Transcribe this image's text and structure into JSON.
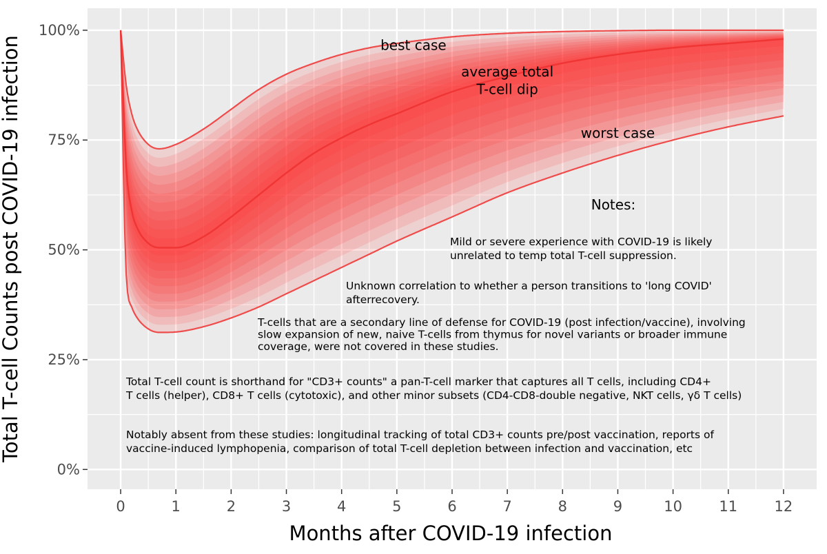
{
  "chart_data": {
    "type": "area",
    "title": "",
    "xlabel": "Months after COVID-19 infection",
    "ylabel": "Total T-cell Counts post COVID-19 infection",
    "xlim": [
      -0.6,
      12.6
    ],
    "ylim": [
      -4.5,
      105
    ],
    "x_ticks": [
      0,
      1,
      2,
      3,
      4,
      5,
      6,
      7,
      8,
      9,
      10,
      11,
      12
    ],
    "x_tick_labels": [
      "0",
      "1",
      "2",
      "3",
      "4",
      "5",
      "6",
      "7",
      "8",
      "9",
      "10",
      "11",
      "12"
    ],
    "y_ticks": [
      0,
      25,
      50,
      75,
      100
    ],
    "y_tick_labels": [
      "0%",
      "25%",
      "50%",
      "75%",
      "100%"
    ],
    "grid": true,
    "background": "#ebebeb",
    "colors": {
      "band": "#ff2a2a",
      "line": "#ee4b4b",
      "mean": "#ee3030"
    },
    "series": [
      {
        "name": "best case",
        "x": [
          0,
          0.1,
          0.2,
          0.3,
          0.5,
          0.7,
          1,
          1.5,
          2,
          2.5,
          3,
          3.5,
          4,
          4.5,
          5,
          6,
          7,
          8,
          9,
          10,
          11,
          12
        ],
        "values": [
          100,
          87.5,
          81,
          77.5,
          74,
          73,
          74,
          77.5,
          82,
          86.5,
          90,
          92.5,
          94.5,
          96,
          97,
          98.5,
          99.3,
          99.7,
          99.9,
          100,
          100,
          100
        ]
      },
      {
        "name": "average total T-cell dip",
        "x": [
          0,
          0.1,
          0.2,
          0.3,
          0.5,
          0.7,
          1,
          1.5,
          2,
          2.5,
          3,
          3.5,
          4,
          4.5,
          5,
          6,
          7,
          8,
          9,
          10,
          11,
          12
        ],
        "values": [
          100,
          69,
          59,
          55,
          51.5,
          50.5,
          50.5,
          53,
          57.5,
          62.5,
          67.5,
          72,
          75.5,
          78.5,
          81,
          86,
          89.5,
          92.5,
          94.5,
          96,
          97,
          98
        ]
      },
      {
        "name": "worst case",
        "x": [
          0,
          0.1,
          0.2,
          0.3,
          0.5,
          0.7,
          1,
          1.5,
          2,
          2.5,
          3,
          3.5,
          4,
          4.5,
          5,
          6,
          7,
          8,
          9,
          10,
          11,
          12
        ],
        "values": [
          100,
          44.5,
          37,
          34.5,
          32,
          31.2,
          31.3,
          32.5,
          34.5,
          37,
          40,
          43,
          46,
          49,
          52,
          57.5,
          63,
          67.5,
          71.5,
          75,
          78,
          80.5
        ]
      }
    ],
    "annotations": [
      {
        "text": "best case",
        "x": 5.3,
        "y": 95.5
      },
      {
        "text": "average total",
        "x": 7.0,
        "y": 89.5
      },
      {
        "text": "T-cell dip",
        "x": 7.0,
        "y": 85.5
      },
      {
        "text": "worst case",
        "x": 9.0,
        "y": 75.5
      }
    ]
  },
  "notes": {
    "title": "Notes:",
    "paragraphs": [
      [
        "Mild or severe experience with COVID-19 is likely",
        "unrelated to temp total T-cell suppression."
      ],
      [
        "Unknown correlation to whether a person transitions to 'long COVID'",
        "afterrecovery."
      ],
      [
        "T-cells that are a secondary line of defense for COVID-19 (post infection/vaccine), involving",
        "slow expansion of new, naive T-cells from thymus for novel variants or broader immune",
        "coverage, were not covered in these studies."
      ],
      [
        "Total T-cell count is shorthand for \"CD3+ counts\" a pan-T-cell marker that captures all T cells, including CD4+",
        "T cells (helper), CD8+ T cells (cytotoxic), and other minor subsets (CD4-CD8-double negative, NKT cells, γδ T cells)"
      ],
      [
        "Notably absent from these studies: longitudinal tracking of total CD3+ counts pre/post vaccination, reports of",
        "vaccine-induced lymphopenia, comparison of total T-cell depletion between infection and vaccination, etc"
      ]
    ]
  }
}
